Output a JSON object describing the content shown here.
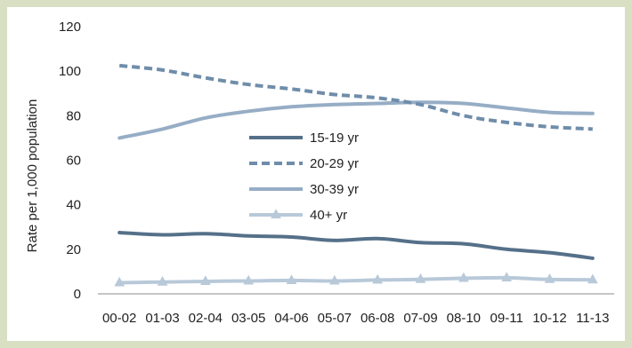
{
  "chart_data": {
    "type": "line",
    "ylabel": "Rate per 1,000 population",
    "xlabel": "",
    "ylim": [
      0,
      120
    ],
    "yticks": [
      0,
      20,
      40,
      60,
      80,
      100,
      120
    ],
    "categories": [
      "00-02",
      "01-03",
      "02-04",
      "03-05",
      "04-06",
      "05-07",
      "06-08",
      "07-09",
      "08-10",
      "09-11",
      "10-12",
      "11-13"
    ],
    "legend_position": "center",
    "grid": false,
    "series": [
      {
        "name": "15-19 yr",
        "color": "#557089",
        "style": "solid",
        "marker": "none",
        "values": [
          27.5,
          26.5,
          27.0,
          26.0,
          25.5,
          24.0,
          24.8,
          23.0,
          22.5,
          20.0,
          18.5,
          16.0
        ]
      },
      {
        "name": "20-29 yr",
        "color": "#6f8daa",
        "style": "dashed",
        "marker": "none",
        "values": [
          102.5,
          100.5,
          97.0,
          94.0,
          92.0,
          89.5,
          88.0,
          85.0,
          80.0,
          77.0,
          75.0,
          74.0
        ]
      },
      {
        "name": "30-39 yr",
        "color": "#96adc5",
        "style": "solid",
        "marker": "none",
        "values": [
          70.0,
          74.0,
          79.0,
          82.0,
          84.0,
          85.0,
          85.5,
          86.0,
          85.5,
          83.5,
          81.5,
          81.0
        ]
      },
      {
        "name": "40+ yr",
        "color": "#b8c9d9",
        "style": "solid",
        "marker": "triangle",
        "values": [
          5.0,
          5.3,
          5.6,
          5.8,
          6.0,
          5.8,
          6.2,
          6.5,
          7.0,
          7.2,
          6.5,
          6.3
        ]
      }
    ]
  }
}
